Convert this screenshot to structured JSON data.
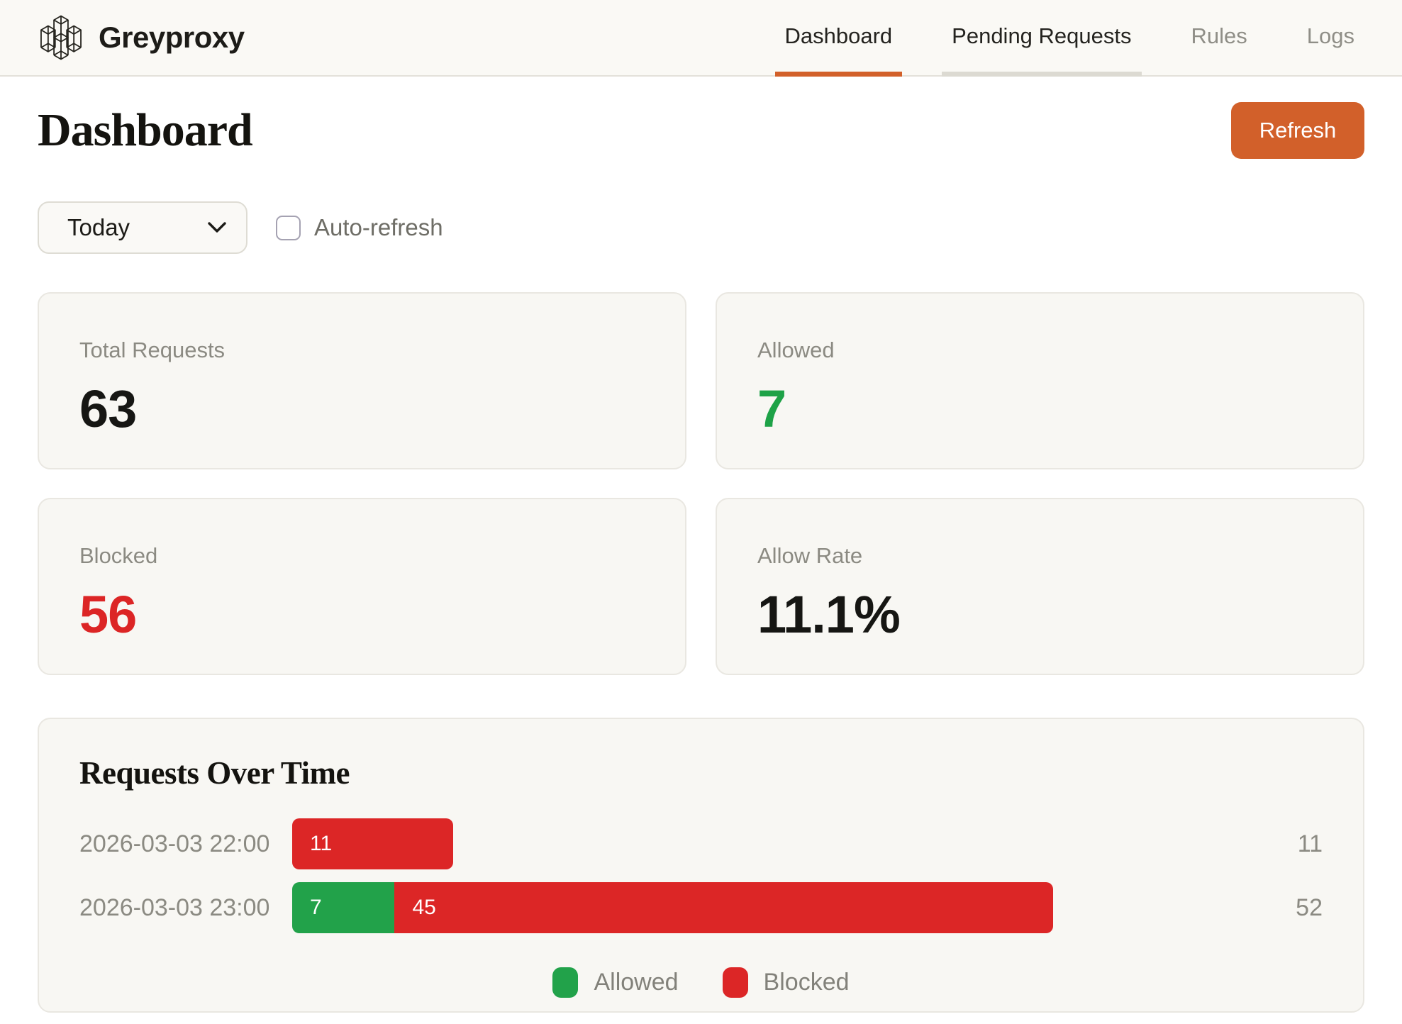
{
  "brand": {
    "name": "Greyproxy"
  },
  "nav": {
    "items": [
      {
        "label": "Dashboard",
        "state": "active"
      },
      {
        "label": "Pending Requests",
        "state": "highlighted"
      },
      {
        "label": "Rules",
        "state": "default"
      },
      {
        "label": "Logs",
        "state": "default"
      }
    ]
  },
  "page": {
    "title": "Dashboard",
    "refresh_label": "Refresh"
  },
  "controls": {
    "period_selected": "Today",
    "auto_refresh_label": "Auto-refresh",
    "auto_refresh_checked": false
  },
  "stats": [
    {
      "label": "Total Requests",
      "value": "63",
      "color": "#161613"
    },
    {
      "label": "Allowed",
      "value": "7",
      "color": "#1ea247"
    },
    {
      "label": "Blocked",
      "value": "56",
      "color": "#dc2525"
    },
    {
      "label": "Allow Rate",
      "value": "11.1%",
      "color": "#161613"
    }
  ],
  "chart_data": {
    "type": "bar",
    "orientation": "horizontal",
    "stacked": true,
    "title": "Requests Over Time",
    "categories": [
      "2026-03-03 22:00",
      "2026-03-03 23:00"
    ],
    "series": [
      {
        "name": "Allowed",
        "color": "#22a24a",
        "values": [
          0,
          7
        ]
      },
      {
        "name": "Blocked",
        "color": "#dc2626",
        "values": [
          11,
          45
        ]
      }
    ],
    "totals": [
      11,
      52
    ],
    "max": 52,
    "legend_position": "bottom",
    "legend": [
      "Allowed",
      "Blocked"
    ]
  },
  "colors": {
    "accent_orange": "#d2602a",
    "green": "#22a24a",
    "red": "#dc2626",
    "header_bg": "#faf9f5",
    "card_bg": "#f8f7f3"
  }
}
